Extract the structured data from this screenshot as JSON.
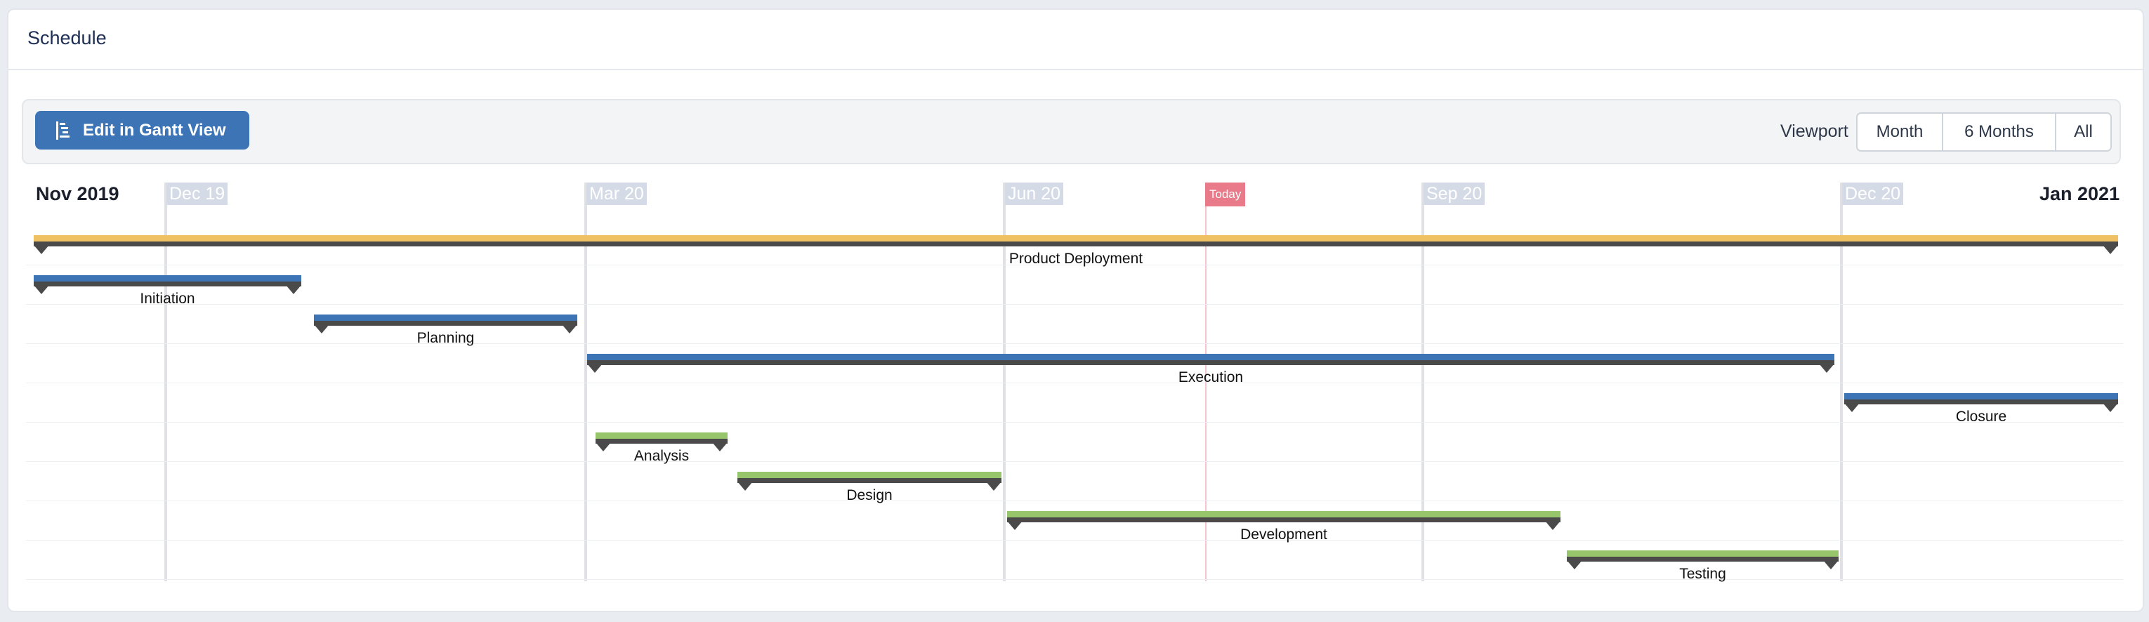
{
  "header": {
    "title": "Schedule"
  },
  "toolbar": {
    "gantt_button_label": "Edit in Gantt View",
    "viewport_label": "Viewport",
    "viewport_options": [
      "Month",
      "6 Months",
      "All"
    ]
  },
  "timeline": {
    "start_label": "Nov 2019",
    "end_label": "Jan 2021",
    "ticks": [
      "Dec 19",
      "Mar 20",
      "Jun 20",
      "Sep 20",
      "Dec 20"
    ],
    "today_label": "Today"
  },
  "colors": {
    "phase_root": "#f0c163",
    "phase": "#3d74b6",
    "task": "#97c56b",
    "today": "#e97a8a"
  },
  "tasks": [
    {
      "name": "Product Deployment",
      "kind": "root"
    },
    {
      "name": "Initiation",
      "kind": "phase"
    },
    {
      "name": "Planning",
      "kind": "phase"
    },
    {
      "name": "Execution",
      "kind": "phase"
    },
    {
      "name": "Closure",
      "kind": "phase"
    },
    {
      "name": "Analysis",
      "kind": "task"
    },
    {
      "name": "Design",
      "kind": "task"
    },
    {
      "name": "Development",
      "kind": "task"
    },
    {
      "name": "Testing",
      "kind": "task"
    }
  ]
}
